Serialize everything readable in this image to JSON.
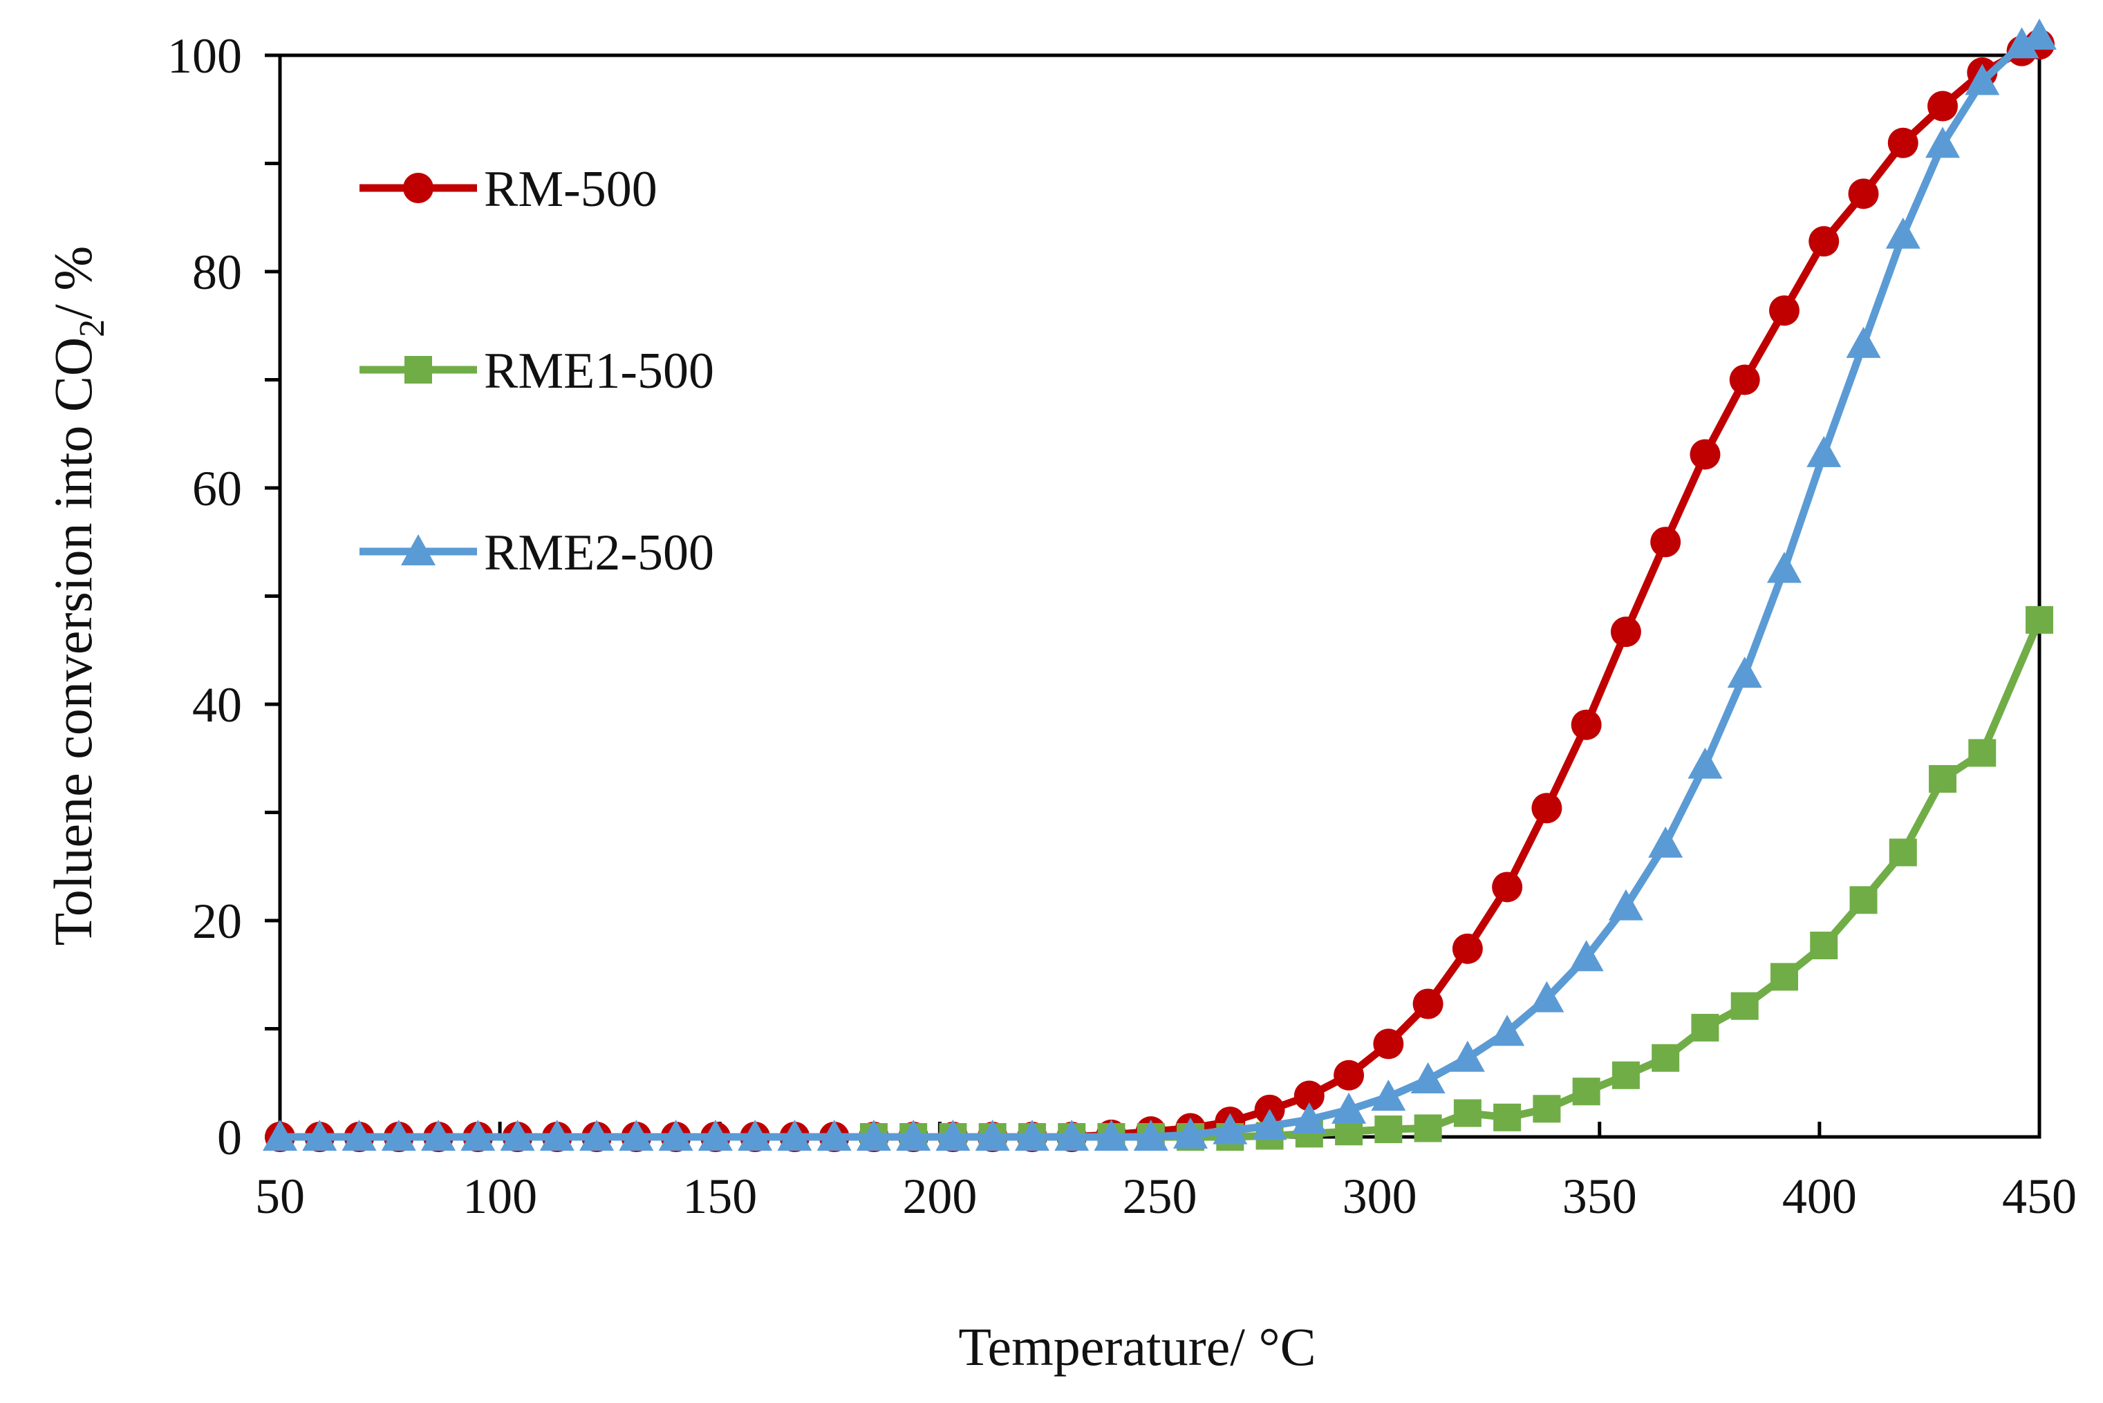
{
  "chart_data": {
    "type": "line",
    "title": "",
    "xlabel": "Temperature/ °C",
    "ylabel_parts": {
      "main": "Toluene conversion into CO",
      "subscript": "2",
      "suffix": "/ %"
    },
    "xlim": [
      50,
      450
    ],
    "ylim": [
      0,
      100
    ],
    "x_ticks": [
      "50",
      "100",
      "150",
      "200",
      "250",
      "300",
      "350",
      "400",
      "450"
    ],
    "y_ticks": [
      "0",
      "20",
      "40",
      "60",
      "80",
      "100"
    ],
    "grid": false,
    "legend_position": "top-left",
    "series": [
      {
        "name": "RM-500",
        "color": "#c00000",
        "marker": "circle",
        "x": [
          50,
          59,
          68,
          77,
          86,
          95,
          104,
          113,
          122,
          131,
          140,
          149,
          158,
          167,
          176,
          185,
          194,
          203,
          212,
          221,
          230,
          239,
          248,
          257,
          266,
          275,
          284,
          293,
          302,
          311,
          320,
          329,
          338,
          347,
          356,
          365,
          374,
          383,
          392,
          401,
          410,
          419,
          428,
          437,
          446,
          450
        ],
        "y": [
          0,
          0,
          0,
          0,
          0,
          0,
          0,
          0,
          0,
          0,
          0,
          0,
          0,
          0,
          0,
          0,
          0,
          0,
          0,
          0,
          0,
          0.2,
          0.5,
          0.8,
          1.4,
          2.5,
          3.8,
          5.7,
          8.6,
          12.3,
          17.4,
          23.1,
          30.4,
          38.1,
          46.7,
          55.0,
          63.1,
          70.0,
          76.4,
          82.8,
          87.2,
          91.9,
          95.3,
          98.4,
          100.4,
          101.0
        ]
      },
      {
        "name": "RME1-500",
        "color": "#70ad47",
        "marker": "square",
        "x": [
          185,
          194,
          203,
          212,
          221,
          230,
          239,
          248,
          257,
          266,
          275,
          284,
          293,
          302,
          311,
          320,
          329,
          338,
          347,
          356,
          365,
          374,
          383,
          392,
          401,
          410,
          419,
          428,
          437,
          450
        ],
        "y": [
          0,
          0,
          0,
          0,
          0,
          0,
          0,
          0,
          0,
          0,
          0.1,
          0.3,
          0.5,
          0.7,
          0.8,
          2.2,
          1.8,
          2.6,
          4.2,
          5.7,
          7.3,
          10.1,
          12.1,
          14.8,
          17.7,
          21.9,
          26.3,
          33.1,
          35.5,
          47.8
        ]
      },
      {
        "name": "RME2-500",
        "color": "#5b9bd5",
        "marker": "triangle",
        "x": [
          50,
          59,
          68,
          77,
          86,
          95,
          104,
          113,
          122,
          131,
          140,
          149,
          158,
          167,
          176,
          185,
          194,
          203,
          212,
          221,
          230,
          239,
          248,
          257,
          266,
          275,
          284,
          293,
          302,
          311,
          320,
          329,
          338,
          347,
          356,
          365,
          374,
          383,
          392,
          401,
          410,
          419,
          428,
          437,
          446,
          450
        ],
        "y": [
          0,
          0,
          0,
          0,
          0,
          0,
          0,
          0,
          0,
          0,
          0,
          0,
          0,
          0,
          0,
          0,
          0,
          0,
          0,
          0,
          0,
          0,
          0,
          0.2,
          0.6,
          1.0,
          1.6,
          2.5,
          3.7,
          5.3,
          7.3,
          9.7,
          12.8,
          16.6,
          21.3,
          27.1,
          34.4,
          42.8,
          52.5,
          63.2,
          73.3,
          83.4,
          91.8,
          97.6,
          101.0,
          101.8
        ]
      }
    ]
  }
}
